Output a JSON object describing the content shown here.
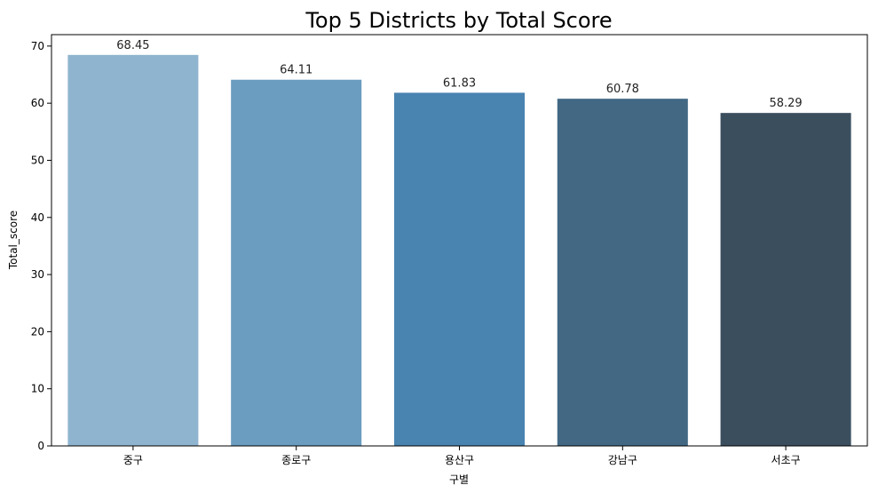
{
  "chart_data": {
    "type": "bar",
    "title": "Top 5 Districts by Total Score",
    "xlabel": "구별",
    "ylabel": "Total_score",
    "categories": [
      "중구",
      "종로구",
      "용산구",
      "강남구",
      "서초구"
    ],
    "values": [
      68.45,
      64.11,
      61.83,
      60.78,
      58.29
    ],
    "value_labels": [
      "68.45",
      "64.11",
      "61.83",
      "60.78",
      "58.29"
    ],
    "colors": [
      "#8fb4cf",
      "#6b9dc0",
      "#4983b0",
      "#426884",
      "#3a4e5e"
    ],
    "ylim": [
      0,
      72
    ],
    "yticks": [
      0,
      10,
      20,
      30,
      40,
      50,
      60,
      70
    ],
    "ytick_labels": [
      "0",
      "10",
      "20",
      "30",
      "40",
      "50",
      "60",
      "70"
    ],
    "grid": false,
    "legend": "none"
  }
}
